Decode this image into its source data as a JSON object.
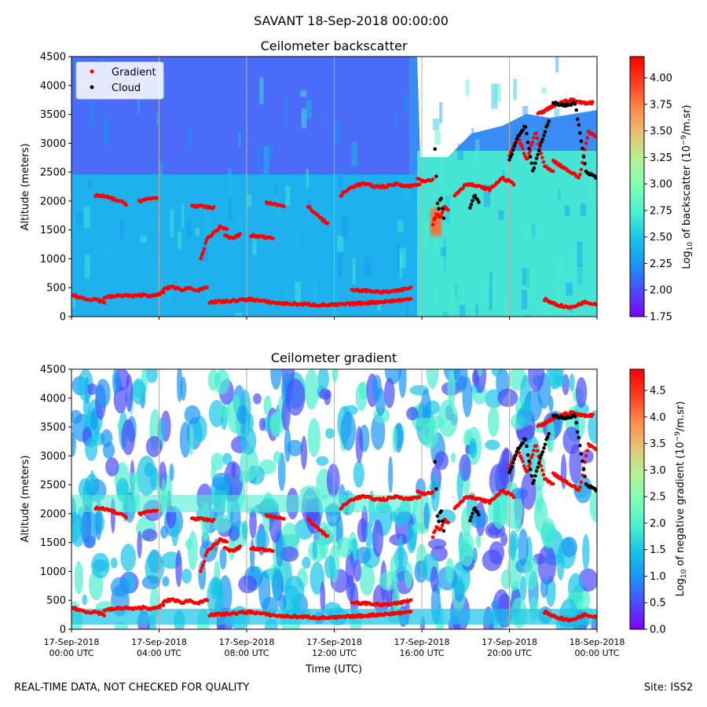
{
  "suptitle": "SAVANT 18-Sep-2018 00:00:00",
  "footer": {
    "left": "REAL-TIME DATA, NOT CHECKED FOR QUALITY",
    "right": "Site: ISS2"
  },
  "colors": {
    "gradient_points": "#ff0000",
    "cloud_points": "#000000",
    "colormap": [
      "#8000ff",
      "#4a4cfb",
      "#1996f3",
      "#17c4e8",
      "#4df0ce",
      "#80ffb4",
      "#b2f396",
      "#e6c373",
      "#ff8a4d",
      "#ff3d21",
      "#ff0000"
    ]
  },
  "time_axis": {
    "label": "Time (UTC)",
    "ticks": [
      {
        "hour": 0,
        "date": "17-Sep-2018",
        "time": "00:00 UTC"
      },
      {
        "hour": 4,
        "date": "17-Sep-2018",
        "time": "04:00 UTC"
      },
      {
        "hour": 8,
        "date": "17-Sep-2018",
        "time": "08:00 UTC"
      },
      {
        "hour": 12,
        "date": "17-Sep-2018",
        "time": "12:00 UTC"
      },
      {
        "hour": 16,
        "date": "17-Sep-2018",
        "time": "16:00 UTC"
      },
      {
        "hour": 20,
        "date": "17-Sep-2018",
        "time": "20:00 UTC"
      },
      {
        "hour": 24,
        "date": "18-Sep-2018",
        "time": "00:00 UTC"
      }
    ]
  },
  "legend": {
    "gradient_label": "Gradient",
    "cloud_label": "Cloud"
  },
  "chart_data": [
    {
      "type": "heatmap",
      "title": "Ceilometer backscatter",
      "xlabel": "",
      "ylabel": "Altitude (meters)",
      "xlim_hours": [
        0,
        24
      ],
      "ylim": [
        0,
        4500
      ],
      "yticks": [
        0,
        500,
        1000,
        1500,
        2000,
        2500,
        3000,
        3500,
        4000,
        4500
      ],
      "colorbar": {
        "label_prefix": "Log",
        "label_sub": "10",
        "label_mid": " of backscatter (10",
        "label_sup": "−9",
        "label_suffix": "/m.sr)",
        "range": [
          1.75,
          4.2
        ],
        "ticks": [
          "1.75",
          "2.00",
          "2.25",
          "2.50",
          "2.75",
          "3.00",
          "3.25",
          "3.50",
          "3.75",
          "4.00"
        ]
      },
      "series": [
        {
          "name": "Gradient",
          "description": "red markers, gradient-detected layer heights",
          "segments": [
            {
              "hours": [
                0.0,
                1.5
              ],
              "altitudes": [
                380,
                330,
                300,
                300,
                250
              ]
            },
            {
              "hours": [
                1.5,
                4.2
              ],
              "altitudes": [
                330,
                350,
                370,
                350,
                380,
                350,
                420
              ]
            },
            {
              "hours": [
                4.2,
                6.2
              ],
              "altitudes": [
                470,
                520,
                460,
                500,
                450,
                500
              ]
            },
            {
              "hours": [
                1.1,
                2.5
              ],
              "altitudes": [
                2100,
                2080,
                2050,
                2000,
                1950
              ]
            },
            {
              "hours": [
                3.1,
                3.9
              ],
              "altitudes": [
                2000,
                2030,
                2060
              ]
            },
            {
              "hours": [
                5.5,
                6.5
              ],
              "altitudes": [
                1920,
                1900,
                1880
              ]
            },
            {
              "hours": [
                5.9,
                7.1
              ],
              "altitudes": [
                1000,
                1350,
                1450,
                1550,
                1520
              ]
            },
            {
              "hours": [
                7.0,
                7.7
              ],
              "altitudes": [
                1400,
                1350,
                1420
              ]
            },
            {
              "hours": [
                8.2,
                9.2
              ],
              "altitudes": [
                1400,
                1380,
                1370
              ]
            },
            {
              "hours": [
                6.3,
                12.0
              ],
              "altitudes": [
                250,
                260,
                280,
                300,
                260,
                230,
                220,
                210,
                200,
                200
              ]
            },
            {
              "hours": [
                12.0,
                15.5
              ],
              "altitudes": [
                200,
                230,
                260,
                300
              ]
            },
            {
              "hours": [
                8.9,
                9.7
              ],
              "altitudes": [
                1980,
                1950,
                1900
              ]
            },
            {
              "hours": [
                10.8,
                11.7
              ],
              "altitudes": [
                1900,
                1800,
                1700,
                1600
              ]
            },
            {
              "hours": [
                12.3,
                15.9
              ],
              "altitudes": [
                2100,
                2250,
                2300,
                2250,
                2250,
                2300,
                2250,
                2300
              ]
            },
            {
              "hours": [
                12.8,
                15.5
              ],
              "altitudes": [
                450,
                450,
                420,
                440,
                500
              ]
            },
            {
              "hours": [
                15.8,
                16.5
              ],
              "altitudes": [
                2380,
                2350,
                2380
              ]
            },
            {
              "hours": [
                16.5,
                17.2
              ],
              "altitudes": [
                1600,
                1800,
                1700,
                1900,
                1850
              ]
            },
            {
              "hours": [
                17.5,
                20.2
              ],
              "altitudes": [
                2100,
                2300,
                2250,
                2200,
                2400,
                2300
              ]
            },
            {
              "hours": [
                20.0,
                22.0
              ],
              "altitudes": [
                2800,
                3100,
                2700,
                3200,
                2600,
                2500
              ]
            },
            {
              "hours": [
                21.3,
                23.8
              ],
              "altitudes": [
                3500,
                3600,
                3700,
                3750,
                3700,
                3700
              ]
            },
            {
              "hours": [
                22.0,
                24.0
              ],
              "altitudes": [
                2700,
                2600,
                2500,
                2400,
                3200,
                3100
              ]
            },
            {
              "hours": [
                21.6,
                24.0
              ],
              "altitudes": [
                300,
                200,
                150,
                250,
                220
              ]
            }
          ]
        },
        {
          "name": "Cloud",
          "description": "black markers, cloud-base detections",
          "segments": [
            {
              "hours": [
                16.6,
                17.0
              ],
              "altitudes": [
                2900,
                1800,
                2100,
                1700
              ]
            },
            {
              "hours": [
                18.2,
                18.6
              ],
              "altitudes": [
                1900,
                2100,
                2000
              ]
            },
            {
              "hours": [
                20.0,
                21.8
              ],
              "altitudes": [
                2700,
                3100,
                3300,
                2500,
                3000,
                3400
              ]
            },
            {
              "hours": [
                22.0,
                24.0
              ],
              "altitudes": [
                3700,
                3650,
                3700,
                2500,
                2400
              ]
            }
          ]
        }
      ]
    },
    {
      "type": "heatmap",
      "title": "Ceilometer gradient",
      "xlabel": "Time (UTC)",
      "ylabel": "Altitude (meters)",
      "xlim_hours": [
        0,
        24
      ],
      "ylim": [
        0,
        4500
      ],
      "yticks": [
        0,
        500,
        1000,
        1500,
        2000,
        2500,
        3000,
        3500,
        4000,
        4500
      ],
      "colorbar": {
        "label_prefix": "Log",
        "label_sub": "10",
        "label_mid": " of negative gradient (10",
        "label_sup": "−9",
        "label_suffix": "/m.sr)",
        "range": [
          0.0,
          4.9
        ],
        "ticks": [
          "0.0",
          "0.5",
          "1.0",
          "1.5",
          "2.0",
          "2.5",
          "3.0",
          "3.5",
          "4.0",
          "4.5"
        ]
      },
      "series": [
        {
          "name": "Gradient",
          "description": "same layer heights as upper panel"
        },
        {
          "name": "Cloud",
          "description": "same cloud detections as upper panel"
        }
      ]
    }
  ]
}
